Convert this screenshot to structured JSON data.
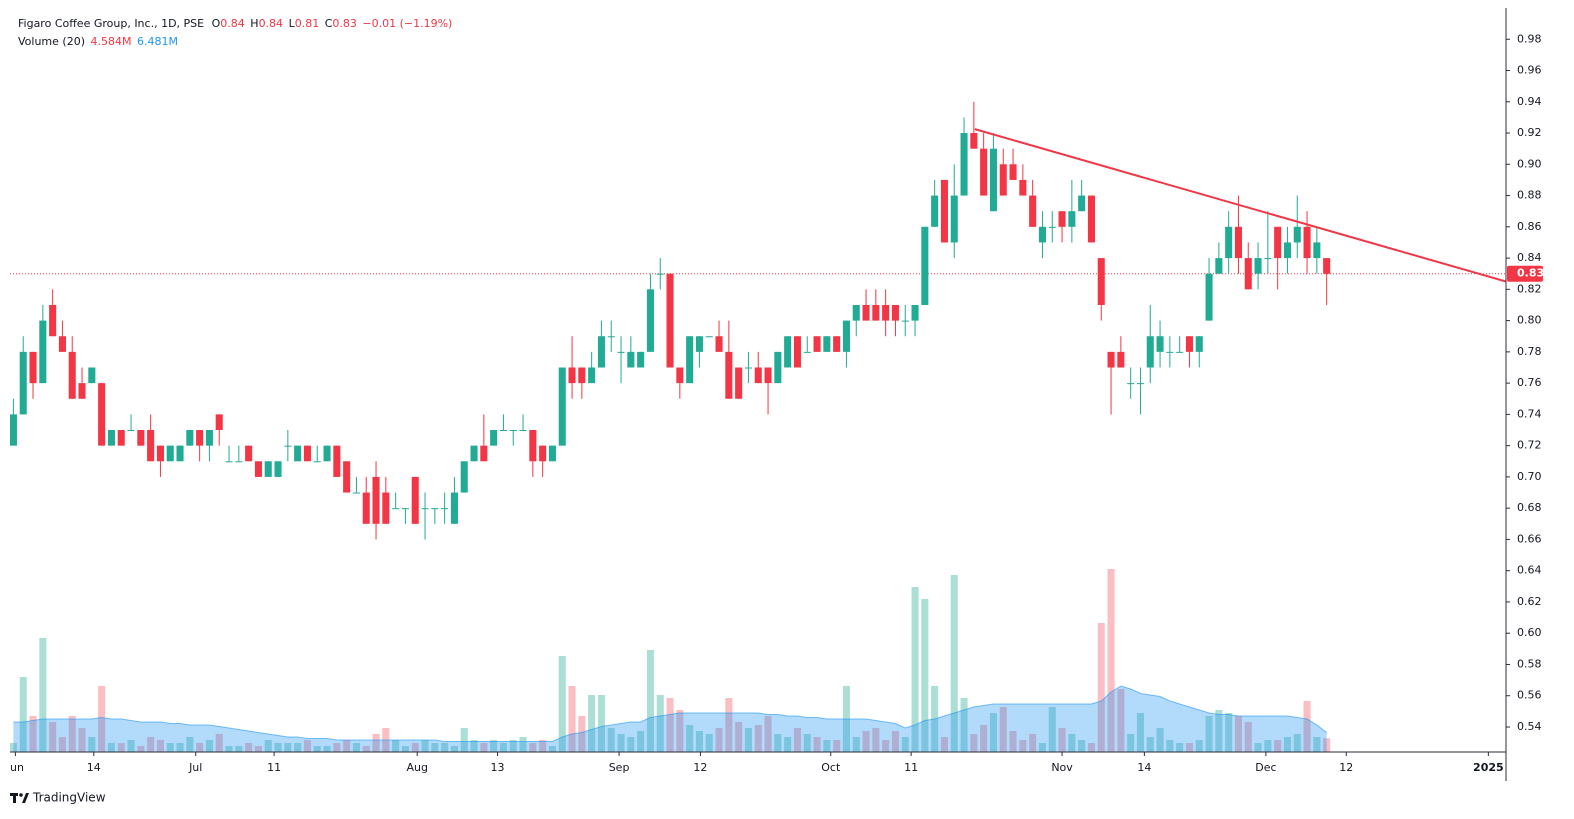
{
  "chart_data": {
    "type": "candlestick",
    "header": {
      "symbol": "Figaro Coffee Group, Inc., 1D, PSE",
      "ohlc_labels": [
        "O",
        "H",
        "L",
        "C"
      ],
      "ohlc_values": [
        0.84,
        0.84,
        0.81,
        0.83
      ],
      "change": "−0.01 (−1.19%)"
    },
    "up_color": "#22ab94",
    "down_color": "#f23645",
    "open": [
      0.72,
      0.74,
      0.78,
      0.76,
      0.81,
      0.79,
      0.78,
      0.76,
      0.76,
      0.76,
      0.72,
      0.73,
      0.73,
      0.73,
      0.73,
      0.72,
      0.71,
      0.71,
      0.72,
      0.73,
      0.72,
      0.74,
      0.71,
      0.71,
      0.72,
      0.71,
      0.7,
      0.7,
      0.72,
      0.71,
      0.72,
      0.71,
      0.71,
      0.72,
      0.71,
      0.69,
      0.69,
      0.7,
      0.69,
      0.68,
      0.68,
      0.7,
      0.68,
      0.68,
      0.68,
      0.67,
      0.69,
      0.71,
      0.72,
      0.72,
      0.73,
      0.73,
      0.73,
      0.73,
      0.72,
      0.71,
      0.72,
      0.77,
      0.77,
      0.76,
      0.77,
      0.79,
      0.78,
      0.77,
      0.77,
      0.78,
      0.83,
      0.83,
      0.77,
      0.76,
      0.78,
      0.79,
      0.79,
      0.78,
      0.77,
      0.77,
      0.77,
      0.77,
      0.76,
      0.77,
      0.79,
      0.78,
      0.79,
      0.78,
      0.79,
      0.78,
      0.8,
      0.81,
      0.81,
      0.81,
      0.81,
      0.8,
      0.8,
      0.81,
      0.86,
      0.89,
      0.85,
      0.88,
      0.92,
      0.91,
      0.87,
      0.9,
      0.9,
      0.89,
      0.88,
      0.85,
      0.86,
      0.87,
      0.86,
      0.87,
      0.88,
      0.84,
      0.78,
      0.78,
      0.76,
      0.76,
      0.77,
      0.78,
      0.78,
      0.78,
      0.79,
      0.78,
      0.8,
      0.83,
      0.84,
      0.86,
      0.84,
      0.83,
      0.84,
      0.86,
      0.84,
      0.85,
      0.86,
      0.84,
      0.84
    ],
    "high": [
      0.75,
      0.79,
      0.78,
      0.81,
      0.82,
      0.8,
      0.79,
      0.77,
      0.77,
      0.76,
      0.73,
      0.73,
      0.74,
      0.73,
      0.74,
      0.72,
      0.72,
      0.72,
      0.73,
      0.73,
      0.73,
      0.74,
      0.72,
      0.72,
      0.72,
      0.71,
      0.71,
      0.71,
      0.73,
      0.72,
      0.72,
      0.72,
      0.72,
      0.72,
      0.71,
      0.7,
      0.7,
      0.71,
      0.7,
      0.69,
      0.68,
      0.7,
      0.69,
      0.68,
      0.69,
      0.7,
      0.71,
      0.72,
      0.74,
      0.73,
      0.74,
      0.73,
      0.74,
      0.73,
      0.72,
      0.72,
      0.77,
      0.79,
      0.77,
      0.78,
      0.8,
      0.8,
      0.79,
      0.79,
      0.78,
      0.83,
      0.84,
      0.83,
      0.77,
      0.79,
      0.79,
      0.79,
      0.8,
      0.8,
      0.77,
      0.78,
      0.78,
      0.77,
      0.78,
      0.79,
      0.79,
      0.79,
      0.79,
      0.79,
      0.79,
      0.8,
      0.81,
      0.82,
      0.82,
      0.82,
      0.81,
      0.81,
      0.81,
      0.86,
      0.89,
      0.89,
      0.9,
      0.93,
      0.94,
      0.92,
      0.92,
      0.91,
      0.91,
      0.9,
      0.89,
      0.87,
      0.87,
      0.87,
      0.89,
      0.89,
      0.88,
      0.84,
      0.78,
      0.79,
      0.77,
      0.77,
      0.81,
      0.8,
      0.79,
      0.79,
      0.79,
      0.79,
      0.84,
      0.85,
      0.87,
      0.88,
      0.85,
      0.85,
      0.87,
      0.86,
      0.86,
      0.88,
      0.87,
      0.86,
      0.84
    ],
    "low": [
      0.72,
      0.74,
      0.75,
      0.76,
      0.79,
      0.78,
      0.75,
      0.75,
      0.76,
      0.72,
      0.72,
      0.72,
      0.73,
      0.72,
      0.71,
      0.7,
      0.71,
      0.71,
      0.72,
      0.71,
      0.71,
      0.72,
      0.71,
      0.71,
      0.71,
      0.7,
      0.7,
      0.7,
      0.71,
      0.71,
      0.71,
      0.71,
      0.71,
      0.7,
      0.69,
      0.69,
      0.67,
      0.66,
      0.67,
      0.68,
      0.67,
      0.67,
      0.66,
      0.67,
      0.67,
      0.67,
      0.69,
      0.71,
      0.71,
      0.72,
      0.73,
      0.72,
      0.73,
      0.7,
      0.7,
      0.71,
      0.72,
      0.75,
      0.75,
      0.76,
      0.77,
      0.78,
      0.76,
      0.77,
      0.77,
      0.78,
      0.82,
      0.77,
      0.75,
      0.76,
      0.77,
      0.79,
      0.78,
      0.75,
      0.75,
      0.76,
      0.76,
      0.74,
      0.76,
      0.77,
      0.77,
      0.78,
      0.78,
      0.78,
      0.78,
      0.77,
      0.79,
      0.8,
      0.8,
      0.79,
      0.79,
      0.79,
      0.79,
      0.81,
      0.86,
      0.85,
      0.84,
      0.88,
      0.91,
      0.88,
      0.87,
      0.88,
      0.89,
      0.88,
      0.86,
      0.84,
      0.85,
      0.85,
      0.85,
      0.87,
      0.85,
      0.8,
      0.74,
      0.77,
      0.75,
      0.74,
      0.76,
      0.77,
      0.77,
      0.78,
      0.77,
      0.77,
      0.8,
      0.83,
      0.83,
      0.83,
      0.82,
      0.82,
      0.83,
      0.82,
      0.83,
      0.84,
      0.83,
      0.83,
      0.81
    ],
    "close": [
      0.74,
      0.78,
      0.76,
      0.8,
      0.79,
      0.78,
      0.75,
      0.75,
      0.77,
      0.72,
      0.73,
      0.72,
      0.73,
      0.72,
      0.71,
      0.71,
      0.72,
      0.72,
      0.73,
      0.72,
      0.73,
      0.73,
      0.71,
      0.71,
      0.71,
      0.7,
      0.71,
      0.71,
      0.72,
      0.72,
      0.71,
      0.71,
      0.72,
      0.7,
      0.69,
      0.69,
      0.67,
      0.67,
      0.67,
      0.68,
      0.68,
      0.67,
      0.68,
      0.68,
      0.68,
      0.69,
      0.71,
      0.72,
      0.71,
      0.73,
      0.73,
      0.73,
      0.73,
      0.71,
      0.71,
      0.72,
      0.77,
      0.76,
      0.76,
      0.77,
      0.79,
      0.79,
      0.78,
      0.78,
      0.78,
      0.82,
      0.83,
      0.77,
      0.76,
      0.79,
      0.79,
      0.79,
      0.78,
      0.75,
      0.75,
      0.77,
      0.76,
      0.76,
      0.78,
      0.79,
      0.77,
      0.78,
      0.78,
      0.79,
      0.78,
      0.8,
      0.81,
      0.8,
      0.8,
      0.8,
      0.8,
      0.8,
      0.81,
      0.86,
      0.88,
      0.85,
      0.88,
      0.92,
      0.91,
      0.88,
      0.91,
      0.88,
      0.89,
      0.88,
      0.86,
      0.86,
      0.86,
      0.86,
      0.87,
      0.88,
      0.85,
      0.81,
      0.77,
      0.77,
      0.76,
      0.76,
      0.79,
      0.79,
      0.78,
      0.78,
      0.78,
      0.79,
      0.83,
      0.84,
      0.86,
      0.84,
      0.82,
      0.84,
      0.84,
      0.84,
      0.85,
      0.86,
      0.84,
      0.85,
      0.83
    ],
    "ylim": [
      0.524,
      1.0
    ],
    "yticks": [
      0.54,
      0.56,
      0.58,
      {
        "value": 0.6,
        "label": "0.60"
      },
      0.62,
      0.64,
      0.66,
      0.68,
      {
        "value": 0.7,
        "label": "0.70"
      },
      0.72,
      0.74,
      0.76,
      0.78,
      {
        "value": 0.8,
        "label": "0.80"
      },
      0.82,
      0.84,
      0.86,
      0.88,
      {
        "value": 0.9,
        "label": "0.90"
      },
      0.92,
      0.94,
      0.96,
      0.98
    ],
    "last_price": 0.83,
    "xlim": [
      -0.35,
      152.3
    ],
    "xticks": [
      {
        "value": 0.2,
        "label": "Jun"
      },
      {
        "value": 8.2,
        "label": "14"
      },
      {
        "value": 18.6,
        "label": "Jul"
      },
      {
        "value": 26.6,
        "label": "11"
      },
      {
        "value": 41.2,
        "label": "Aug"
      },
      {
        "value": 49.4,
        "label": "13"
      },
      {
        "value": 61.8,
        "label": "Sep"
      },
      {
        "value": 70.1,
        "label": "12"
      },
      {
        "value": 83.4,
        "label": "Oct"
      },
      {
        "value": 91.6,
        "label": "11"
      },
      {
        "value": 107,
        "label": "Nov"
      },
      {
        "value": 115.4,
        "label": "14"
      },
      {
        "value": 127.8,
        "label": "Dec"
      },
      {
        "value": 136,
        "label": "12"
      },
      {
        "value": 150.5,
        "label": "2025"
      }
    ],
    "volume": {
      "name": "Volume (20)",
      "values": [
        3,
        25,
        12,
        38,
        10,
        5,
        12,
        8,
        5,
        22,
        3,
        3,
        4,
        2,
        5,
        4,
        3,
        3,
        5,
        3,
        4,
        6,
        2,
        2,
        3,
        2,
        4,
        3,
        3,
        3,
        4,
        2,
        2,
        3,
        4,
        3,
        2,
        6,
        8,
        4,
        2,
        3,
        4,
        3,
        3,
        2,
        8,
        4,
        3,
        4,
        3,
        4,
        5,
        3,
        4,
        2,
        32,
        22,
        12,
        19,
        19,
        8,
        6,
        5,
        7,
        34,
        19,
        18,
        14,
        9,
        7,
        6,
        8,
        18,
        10,
        8,
        9,
        12,
        6,
        5,
        8,
        6,
        5,
        4,
        4,
        22,
        5,
        7,
        8,
        4,
        7,
        5,
        55,
        51,
        22,
        5,
        59,
        18,
        6,
        9,
        13,
        15,
        7,
        4,
        6,
        3,
        15,
        8,
        6,
        4,
        3,
        43,
        61,
        21,
        6,
        13,
        5,
        8,
        4,
        3,
        3,
        4,
        12,
        14,
        13,
        12,
        10,
        3,
        4,
        4,
        5,
        6,
        17,
        5,
        4.584
      ],
      "ma": [
        10,
        10,
        10.5,
        11,
        11,
        11,
        11,
        11,
        11,
        11.5,
        11,
        11,
        10.5,
        10,
        10,
        10,
        9.5,
        9.5,
        9,
        9,
        9,
        8.5,
        8,
        7.5,
        7,
        6.5,
        6,
        5.5,
        5,
        5,
        4.5,
        4.5,
        4.5,
        4,
        4,
        4,
        4,
        4,
        4,
        4,
        4,
        4,
        4,
        4,
        3.5,
        3.5,
        3.5,
        3.5,
        3.5,
        3.5,
        3.5,
        3.5,
        3.5,
        3.5,
        3.5,
        3.5,
        5,
        6,
        6.5,
        7.5,
        8.5,
        9,
        9.5,
        10,
        10,
        11.5,
        12,
        12.5,
        13,
        13,
        13,
        13,
        13,
        13,
        13,
        13,
        13,
        12.5,
        12.5,
        12,
        12,
        11.5,
        11.5,
        11,
        11,
        11,
        11,
        11,
        10.5,
        10,
        9.5,
        8,
        9,
        10.5,
        11,
        12,
        13,
        14,
        15,
        15.5,
        16,
        16,
        16,
        16,
        16,
        16,
        16,
        16,
        16,
        16,
        16,
        17,
        20,
        22,
        21,
        19.5,
        19,
        18.5,
        17,
        16,
        15,
        14,
        13,
        12.5,
        12.5,
        12,
        12,
        12,
        12,
        12,
        12,
        11.5,
        11,
        9,
        6.481
      ],
      "value_label": "4.584M",
      "ma_label": "6.481M",
      "ma_color": "#2196f3"
    },
    "trend_line": {
      "x": [
        98.1,
        152.3
      ],
      "y": [
        0.9225,
        0.825
      ],
      "color": "#f23645"
    }
  },
  "footer": {
    "brand": "TradingView"
  }
}
